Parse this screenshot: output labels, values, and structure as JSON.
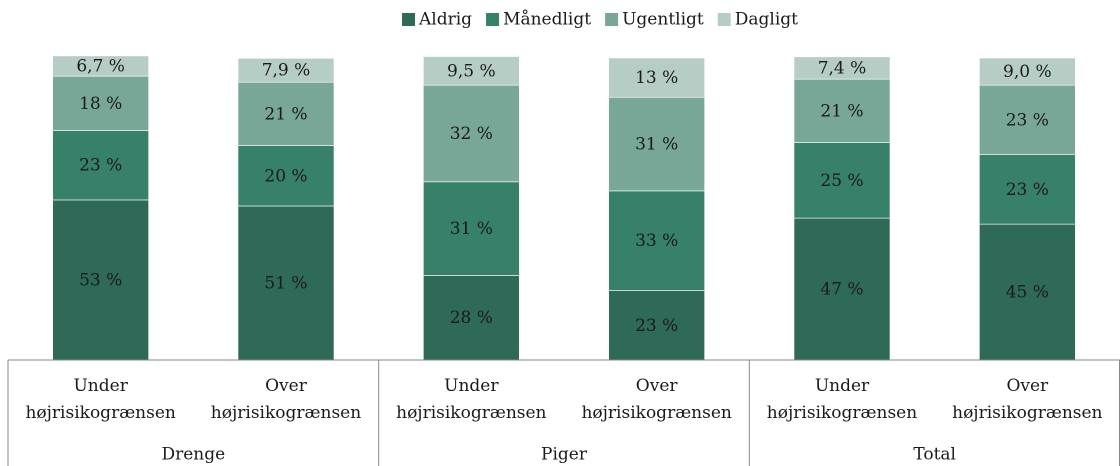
{
  "chart_data": {
    "type": "stacked_bar",
    "categories": [
      "Under højrisikogrænsen",
      "Over højrisikogrænsen",
      "Under højrisikogrænsen",
      "Over højrisikogrænsen",
      "Under højrisikogrænsen",
      "Over højrisikogrænsen"
    ],
    "groups": [
      "Drenge",
      "Piger",
      "Total"
    ],
    "ylim": [
      0,
      100
    ],
    "legend": "top",
    "series": [
      {
        "name": "Aldrig",
        "color": "#2e6a57",
        "values": [
          53,
          51,
          28,
          23,
          47,
          45
        ],
        "value_labels": [
          "53 %",
          "51 %",
          "28 %",
          "23 %",
          "47 %",
          "45 %"
        ]
      },
      {
        "name": "Månedligt",
        "color": "#37806a",
        "values": [
          23,
          20,
          31,
          33,
          25,
          23
        ],
        "value_labels": [
          "23 %",
          "20 %",
          "31 %",
          "33 %",
          "25 %",
          "23 %"
        ]
      },
      {
        "name": "Ugentligt",
        "color": "#78a797",
        "values": [
          18,
          21,
          32,
          31,
          21,
          23
        ],
        "value_labels": [
          "18 %",
          "21 %",
          "32 %",
          "31 %",
          "21 %",
          "23 %"
        ]
      },
      {
        "name": "Dagligt",
        "color": "#b6cdc5",
        "values": [
          6.7,
          7.9,
          9.5,
          13,
          7.4,
          9.0
        ],
        "value_labels": [
          "6,7 %",
          "7,9 %",
          "9,5 %",
          "13 %",
          "7,4 %",
          "9,0 %"
        ]
      }
    ]
  }
}
